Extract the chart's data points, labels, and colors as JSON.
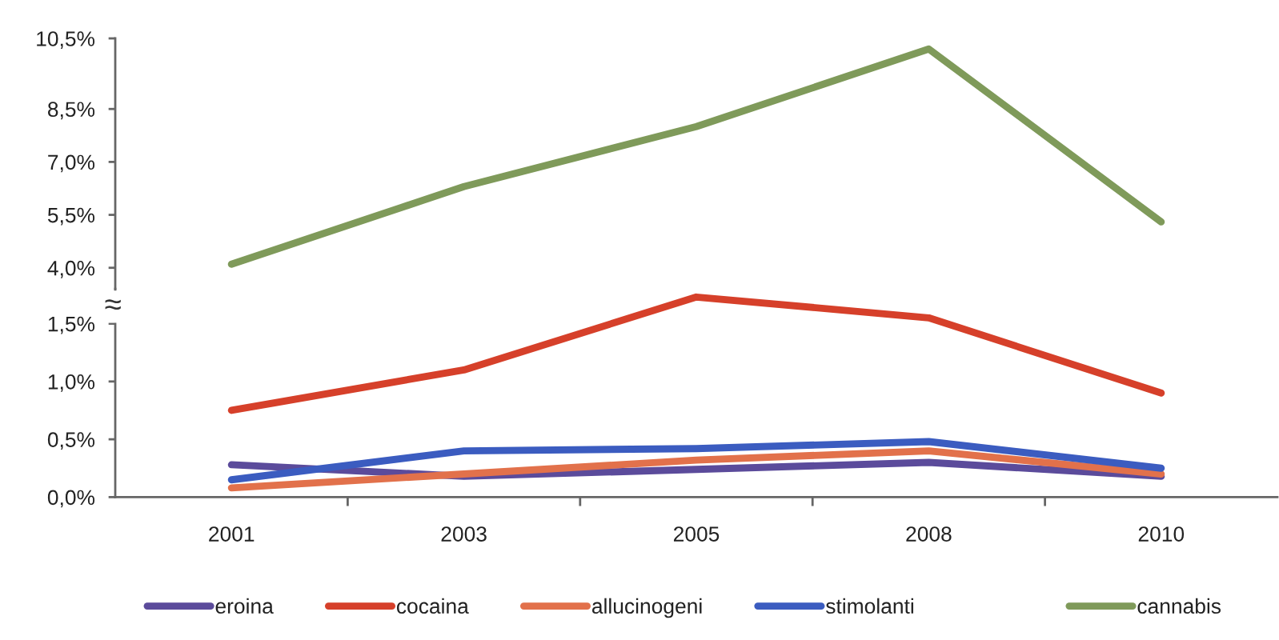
{
  "chart_data": [
    {
      "type": "line",
      "categories": [
        "2001",
        "2003",
        "2005",
        "2008",
        "2010"
      ],
      "series": [
        {
          "name": "cannabis",
          "color": "#7f9a5a",
          "values": [
            4.1,
            6.3,
            8.0,
            10.2,
            5.3
          ]
        }
      ],
      "ylim": [
        3.4,
        10.5
      ],
      "yticks": [
        {
          "value": 4.0,
          "label": "4,0%"
        },
        {
          "value": 5.5,
          "label": "5,5%"
        },
        {
          "value": 7.0,
          "label": "7,0%"
        },
        {
          "value": 8.5,
          "label": "8,5%"
        },
        {
          "value": 10.5,
          "label": "10,5%"
        }
      ],
      "tick_labels": "y",
      "legend": "bottom right",
      "line_style": "solid"
    },
    {
      "type": "line",
      "categories": [
        "2001",
        "2003",
        "2005",
        "2008",
        "2010"
      ],
      "series": [
        {
          "name": "eroina",
          "color": "#5b4b9b",
          "values": [
            0.28,
            0.18,
            0.24,
            0.3,
            0.18
          ]
        },
        {
          "name": "cocaina",
          "color": "#d6402a",
          "values": [
            0.75,
            1.1,
            1.73,
            1.55,
            0.9
          ]
        },
        {
          "name": "allucinogeni",
          "color": "#e2714b",
          "values": [
            0.08,
            0.2,
            0.32,
            0.4,
            0.2
          ]
        },
        {
          "name": "stimolanti",
          "color": "#3b5cc0",
          "values": [
            0.15,
            0.4,
            0.42,
            0.48,
            0.25
          ]
        }
      ],
      "ylim": [
        0,
        1.8
      ],
      "yticks": [
        {
          "value": 0,
          "label": "0,0%"
        },
        {
          "value": 0.5,
          "label": "0,5%"
        },
        {
          "value": 1.0,
          "label": "1,0%"
        },
        {
          "value": 1.5,
          "label": "1,5%"
        }
      ],
      "annotations": [
        "≈"
      ],
      "legend": "bottom left",
      "line_style": "solid"
    }
  ]
}
